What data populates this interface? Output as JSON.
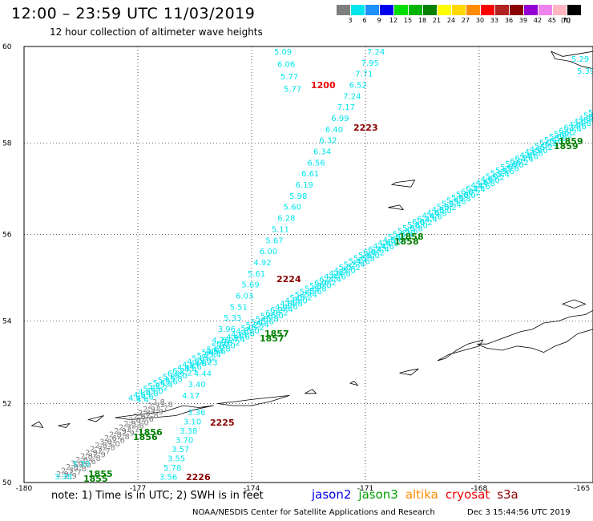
{
  "header": {
    "title": "12:00 – 23:59 UTC 11/03/2019",
    "subtitle": "12 hour collection of altimeter wave heights"
  },
  "legend": {
    "unit": "(ft)",
    "bins": [
      {
        "label": "3",
        "color": "#7f7f7f"
      },
      {
        "label": "6",
        "color": "#00e5ee"
      },
      {
        "label": "9",
        "color": "#1e90ff"
      },
      {
        "label": "12",
        "color": "#0000ee"
      },
      {
        "label": "15",
        "color": "#00dd00"
      },
      {
        "label": "18",
        "color": "#00b400"
      },
      {
        "label": "21",
        "color": "#007f00"
      },
      {
        "label": "24",
        "color": "#ffff00"
      },
      {
        "label": "27",
        "color": "#ffd700"
      },
      {
        "label": "30",
        "color": "#ff8c00"
      },
      {
        "label": "33",
        "color": "#ff0000"
      },
      {
        "label": "36",
        "color": "#b22222"
      },
      {
        "label": "39",
        "color": "#8b0000"
      },
      {
        "label": "42",
        "color": "#9400d3"
      },
      {
        "label": "45",
        "color": "#ee82ee"
      },
      {
        "label": "70",
        "color": "#ffb6c1"
      },
      {
        "label": "",
        "color": "#000000"
      }
    ]
  },
  "map": {
    "lon_range": [
      -180,
      -165
    ],
    "lat_range": [
      50,
      60
    ],
    "lon_ticks": [
      "-180",
      "-177",
      "-174",
      "-171",
      "-168",
      "-165"
    ],
    "lat_ticks": [
      "60",
      "58",
      "56",
      "54",
      "52",
      "50"
    ],
    "colors": {
      "swh": "#00e5ee",
      "swh_low": "#7f7f7f",
      "time_green": "#007f00",
      "time_red": "#8b0000",
      "time_bright_red": "#ee0000"
    },
    "track_a_values": [
      "7.24",
      "7.95",
      "7.71",
      "6.52",
      "7.24",
      "7.17",
      "6.99",
      "6.40",
      "6.32",
      "6.34",
      "6.56",
      "6.61",
      "6.19",
      "5.98",
      "5.60",
      "6.28",
      "5.11",
      "5.67",
      "6.00",
      "4.92",
      "5.61",
      "5.69",
      "6.03",
      "5.51",
      "5.33",
      "3.96",
      "4.26",
      "4.64",
      "4.23",
      "4.44",
      "3.40",
      "4.17"
    ],
    "track_b_values": [
      "5.09",
      "6.06",
      "5.77",
      "5.77"
    ],
    "track_c_values": [
      "3.36",
      "3.10",
      "3.38",
      "3.70",
      "3.57",
      "3.55",
      "5.78",
      "3.56"
    ],
    "time_labels": [
      {
        "text": "1200",
        "color": "red"
      },
      {
        "text": "2223",
        "color": "dark"
      },
      {
        "text": "2224",
        "color": "dark"
      },
      {
        "text": "2225",
        "color": "dark"
      },
      {
        "text": "2226",
        "color": "dark"
      },
      {
        "text": "1855",
        "color": "green"
      },
      {
        "text": "1856",
        "color": "green"
      },
      {
        "text": "1857",
        "color": "green"
      },
      {
        "text": "1858",
        "color": "green"
      },
      {
        "text": "1859",
        "color": "green"
      }
    ],
    "edge_values": [
      "5.29",
      "5.39"
    ]
  },
  "footer": {
    "note": "note:  1) Time is in UTC;  2) SWH is in feet",
    "satellites": [
      {
        "name": "jason2",
        "color": "#0000ee"
      },
      {
        "name": "jason3",
        "color": "#00a000"
      },
      {
        "name": "altika",
        "color": "#ff8c00"
      },
      {
        "name": "cryosat",
        "color": "#ee0000"
      },
      {
        "name": "s3a",
        "color": "#8b0000"
      }
    ],
    "credit": "NOAA/NESDIS Center for Satellite Applications and Research",
    "timestamp": "Dec  3 15:44:56 UTC 2019"
  }
}
